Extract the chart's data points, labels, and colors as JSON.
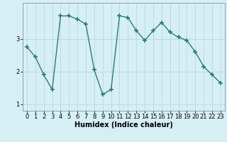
{
  "x": [
    0,
    1,
    2,
    3,
    4,
    5,
    6,
    7,
    8,
    9,
    10,
    11,
    12,
    13,
    14,
    15,
    16,
    17,
    18,
    19,
    20,
    21,
    22,
    23
  ],
  "y": [
    2.75,
    2.45,
    1.9,
    1.45,
    3.7,
    3.7,
    3.6,
    3.45,
    2.05,
    1.3,
    1.45,
    3.7,
    3.65,
    3.25,
    2.95,
    3.25,
    3.5,
    3.2,
    3.05,
    2.95,
    2.6,
    2.15,
    1.9,
    1.65
  ],
  "line_color": "#2e7d70",
  "marker": "+",
  "marker_size": 4,
  "bg_color": "#d6eff5",
  "grid_color": "#b8d8e0",
  "xlabel": "Humidex (Indice chaleur)",
  "ylim": [
    0.8,
    4.1
  ],
  "xlim": [
    -0.5,
    23.5
  ],
  "yticks": [
    1,
    2,
    3
  ],
  "xticks": [
    0,
    1,
    2,
    3,
    4,
    5,
    6,
    7,
    8,
    9,
    10,
    11,
    12,
    13,
    14,
    15,
    16,
    17,
    18,
    19,
    20,
    21,
    22,
    23
  ],
  "xlabel_fontsize": 7,
  "tick_fontsize": 6,
  "line_width": 1.0,
  "marker_color": "#2e7d70"
}
